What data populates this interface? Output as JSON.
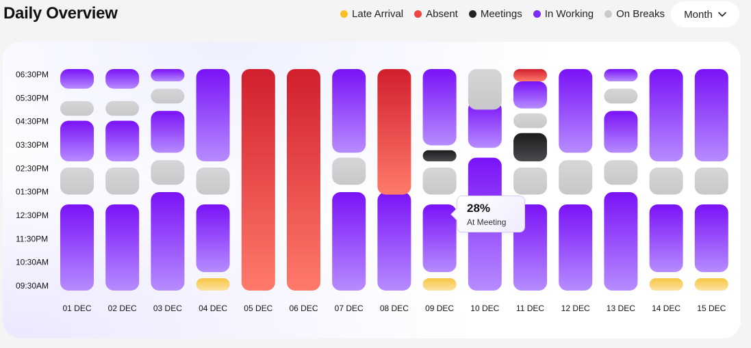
{
  "header": {
    "title": "Daily Overview",
    "period_label": "Month"
  },
  "legend": [
    {
      "label": "Late Arrival",
      "color": "#fbbf24"
    },
    {
      "label": "Absent",
      "color": "#ef4444"
    },
    {
      "label": "Meetings",
      "color": "#222222"
    },
    {
      "label": "In Working",
      "color": "#7c2cf5"
    },
    {
      "label": "On Breaks",
      "color": "#c9c9cb"
    }
  ],
  "tooltip": {
    "value": "28%",
    "label": "At Meeting"
  },
  "chart_data": {
    "type": "bar",
    "stacked": true,
    "orientation": "vertical",
    "y_ticks": [
      "06:30PM",
      "05:30PM",
      "04:30PM",
      "03:30PM",
      "02:30PM",
      "01:30PM",
      "12:30PM",
      "11:30PM",
      "10:30AM",
      "09:30AM"
    ],
    "categories": [
      "01 DEC",
      "02 DEC",
      "03 DEC",
      "04 DEC",
      "05 DEC",
      "06 DEC",
      "07 DEC",
      "08 DEC",
      "09 DEC",
      "10 DEC",
      "11 DEC",
      "12 DEC",
      "13 DEC",
      "14 DEC",
      "15 DEC"
    ],
    "ylim_hours": [
      9.5,
      18.5
    ],
    "segment_types": {
      "working": "In Working",
      "break": "On Breaks",
      "meeting": "Meetings",
      "absent": "Absent",
      "late": "Late Arrival"
    },
    "days": [
      {
        "date": "01 DEC",
        "segments": [
          {
            "type": "working",
            "start": 9.5,
            "end": 13.0
          },
          {
            "type": "break",
            "start": 13.4,
            "end": 14.5
          },
          {
            "type": "working",
            "start": 14.75,
            "end": 16.4
          },
          {
            "type": "break",
            "start": 16.6,
            "end": 17.2
          },
          {
            "type": "working",
            "start": 17.7,
            "end": 18.5
          }
        ]
      },
      {
        "date": "02 DEC",
        "segments": [
          {
            "type": "working",
            "start": 9.5,
            "end": 13.0
          },
          {
            "type": "break",
            "start": 13.4,
            "end": 14.5
          },
          {
            "type": "working",
            "start": 14.75,
            "end": 16.4
          },
          {
            "type": "break",
            "start": 16.6,
            "end": 17.2
          },
          {
            "type": "working",
            "start": 17.7,
            "end": 18.5
          }
        ]
      },
      {
        "date": "03 DEC",
        "segments": [
          {
            "type": "working",
            "start": 9.5,
            "end": 13.5
          },
          {
            "type": "break",
            "start": 13.8,
            "end": 14.8
          },
          {
            "type": "working",
            "start": 15.1,
            "end": 16.8
          },
          {
            "type": "break",
            "start": 17.1,
            "end": 17.7
          },
          {
            "type": "working",
            "start": 18.0,
            "end": 18.5
          }
        ]
      },
      {
        "date": "04 DEC",
        "segments": [
          {
            "type": "late",
            "start": 9.5,
            "end": 10.0
          },
          {
            "type": "working",
            "start": 10.25,
            "end": 13.0
          },
          {
            "type": "break",
            "start": 13.4,
            "end": 14.5
          },
          {
            "type": "working",
            "start": 14.75,
            "end": 18.5
          }
        ]
      },
      {
        "date": "05 DEC",
        "segments": [
          {
            "type": "absent",
            "start": 9.5,
            "end": 18.5
          }
        ]
      },
      {
        "date": "06 DEC",
        "segments": [
          {
            "type": "absent",
            "start": 9.5,
            "end": 18.5
          }
        ]
      },
      {
        "date": "07 DEC",
        "segments": [
          {
            "type": "working",
            "start": 9.5,
            "end": 13.5
          },
          {
            "type": "break",
            "start": 13.8,
            "end": 14.9
          },
          {
            "type": "working",
            "start": 15.1,
            "end": 18.5
          }
        ]
      },
      {
        "date": "08 DEC",
        "segments": [
          {
            "type": "working",
            "start": 9.5,
            "end": 13.5
          },
          {
            "type": "absent",
            "start": 13.4,
            "end": 18.5
          }
        ]
      },
      {
        "date": "09 DEC",
        "segments": [
          {
            "type": "late",
            "start": 9.5,
            "end": 10.0
          },
          {
            "type": "working",
            "start": 10.25,
            "end": 13.0
          },
          {
            "type": "break",
            "start": 13.4,
            "end": 14.5
          },
          {
            "type": "meeting",
            "start": 14.75,
            "end": 15.2
          },
          {
            "type": "working",
            "start": 15.4,
            "end": 18.5
          }
        ]
      },
      {
        "date": "10 DEC",
        "segments": [
          {
            "type": "working",
            "start": 9.5,
            "end": 14.9
          },
          {
            "type": "working",
            "start": 15.3,
            "end": 17.2
          },
          {
            "type": "break",
            "start": 16.85,
            "end": 18.5
          }
        ]
      },
      {
        "date": "11 DEC",
        "segments": [
          {
            "type": "working",
            "start": 9.5,
            "end": 13.0
          },
          {
            "type": "break",
            "start": 13.4,
            "end": 14.5
          },
          {
            "type": "meeting",
            "start": 14.75,
            "end": 15.9
          },
          {
            "type": "break",
            "start": 16.1,
            "end": 16.7
          },
          {
            "type": "working",
            "start": 16.9,
            "end": 18.0
          },
          {
            "type": "absent",
            "start": 18.0,
            "end": 18.5
          }
        ]
      },
      {
        "date": "12 DEC",
        "segments": [
          {
            "type": "working",
            "start": 9.5,
            "end": 13.0
          },
          {
            "type": "break",
            "start": 13.4,
            "end": 14.8
          },
          {
            "type": "working",
            "start": 15.1,
            "end": 18.5
          }
        ]
      },
      {
        "date": "13 DEC",
        "segments": [
          {
            "type": "working",
            "start": 9.5,
            "end": 13.5
          },
          {
            "type": "break",
            "start": 13.8,
            "end": 14.8
          },
          {
            "type": "working",
            "start": 15.1,
            "end": 16.8
          },
          {
            "type": "break",
            "start": 17.1,
            "end": 17.7
          },
          {
            "type": "working",
            "start": 18.0,
            "end": 18.5
          }
        ]
      },
      {
        "date": "14 DEC",
        "segments": [
          {
            "type": "late",
            "start": 9.5,
            "end": 10.0
          },
          {
            "type": "working",
            "start": 10.25,
            "end": 13.0
          },
          {
            "type": "break",
            "start": 13.4,
            "end": 14.5
          },
          {
            "type": "working",
            "start": 14.75,
            "end": 18.5
          }
        ]
      },
      {
        "date": "15 DEC",
        "segments": [
          {
            "type": "late",
            "start": 9.5,
            "end": 10.0
          },
          {
            "type": "working",
            "start": 10.25,
            "end": 13.0
          },
          {
            "type": "break",
            "start": 13.4,
            "end": 14.5
          },
          {
            "type": "working",
            "start": 14.75,
            "end": 18.5
          }
        ]
      }
    ]
  }
}
